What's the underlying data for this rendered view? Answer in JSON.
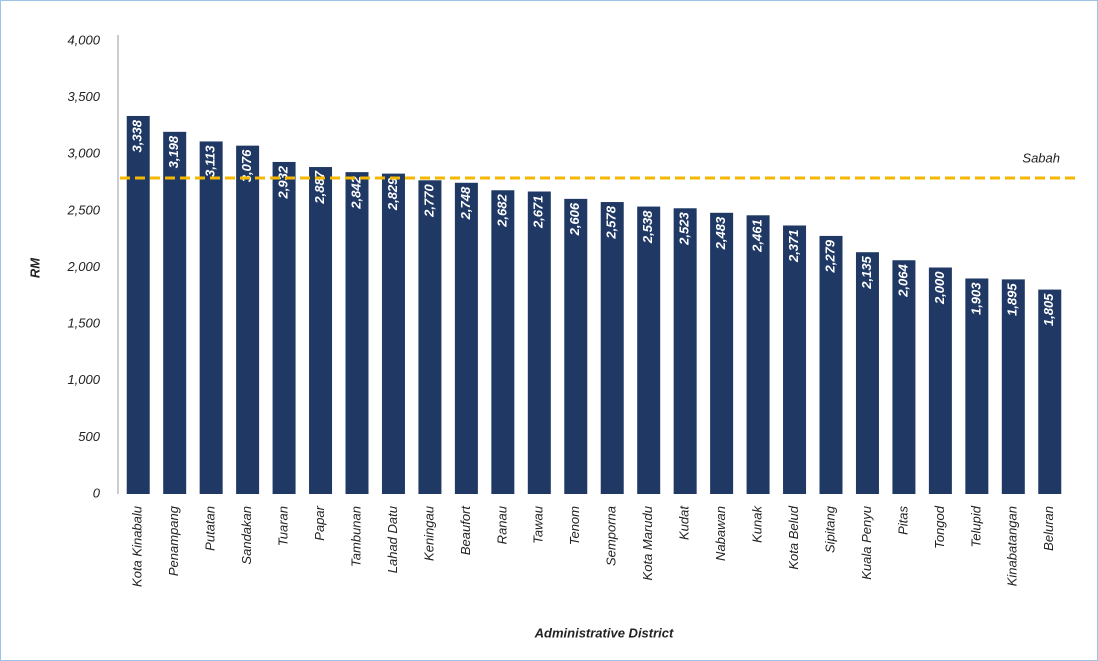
{
  "chart_data": {
    "type": "bar",
    "y_label": "RM",
    "x_label": "Administrative  District",
    "categories": [
      "Kota Kinabalu",
      "Penampang",
      "Putatan",
      "Sandakan",
      "Tuaran",
      "Papar",
      "Tambunan",
      "Lahad Datu",
      "Keningau",
      "Beaufort",
      "Ranau",
      "Tawau",
      "Tenom",
      "Semporna",
      "Kota Marudu",
      "Kudat",
      "Nabawan",
      "Kunak",
      "Kota Belud",
      "Sipitang",
      "Kuala Penyu",
      "Pitas",
      "Tongod",
      "Telupid",
      "Kinabatangan",
      "Beluran"
    ],
    "values": [
      3338,
      3198,
      3113,
      3076,
      2932,
      2887,
      2842,
      2829,
      2770,
      2748,
      2682,
      2671,
      2606,
      2578,
      2538,
      2523,
      2483,
      2461,
      2371,
      2279,
      2135,
      2064,
      2000,
      1903,
      1895,
      1805
    ],
    "value_labels": [
      "3,338",
      "3,198",
      "3,113",
      "3,076",
      "2,932",
      "2,887",
      "2,842",
      "2,829",
      "2,770",
      "2,748",
      "2,682",
      "2,671",
      "2,606",
      "2,578",
      "2,538",
      "2,523",
      "2,483",
      "2,461",
      "2,371",
      "2,279",
      "2,135",
      "2,064",
      "2,000",
      "1,903",
      "1,895",
      "1,805"
    ],
    "color": "#1f3864",
    "reference_line": {
      "name": "Sabah",
      "value": 2790,
      "color": "#f5b800"
    },
    "ylim": [
      0,
      4000
    ],
    "yticks": [
      0,
      500,
      {
        "value": 1000,
        "label": "1,000"
      },
      {
        "value": 1500,
        "label": "1,500"
      },
      {
        "value": 2000,
        "label": "2,000"
      },
      {
        "value": 2500,
        "label": "2,500"
      },
      {
        "value": 3000,
        "label": "3,000"
      },
      {
        "value": 3500,
        "label": "3,500"
      },
      {
        "value": 4000,
        "label": "4,000"
      }
    ],
    "grid": false
  }
}
